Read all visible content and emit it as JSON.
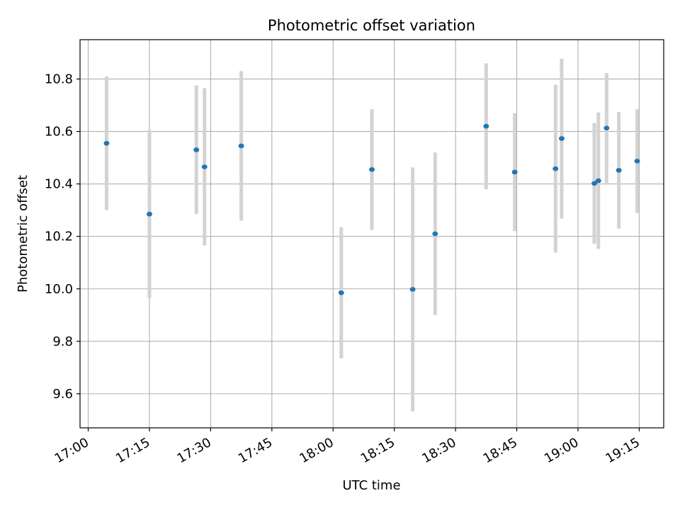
{
  "chart_data": {
    "type": "scatter",
    "title": "Photometric offset variation",
    "xlabel": "UTC time",
    "ylabel": "Photometric offset",
    "x_tick_labels": [
      "17:00",
      "17:15",
      "17:30",
      "17:45",
      "18:00",
      "18:15",
      "18:30",
      "18:45",
      "19:00",
      "19:15"
    ],
    "y_tick_labels": [
      "9.6",
      "9.8",
      "10.0",
      "10.2",
      "10.4",
      "10.6",
      "10.8"
    ],
    "xlim": [
      "16:58",
      "19:21"
    ],
    "ylim": [
      9.47,
      10.95
    ],
    "grid": true,
    "colors": {
      "point": "#1f77b4",
      "errorbar": "#d3d3d3",
      "grid": "#b0b0b0"
    },
    "points": [
      {
        "x": "17:04.5",
        "y": 10.555,
        "err": 0.255
      },
      {
        "x": "17:15.0",
        "y": 10.285,
        "err": 0.32
      },
      {
        "x": "17:26.5",
        "y": 10.53,
        "err": 0.245
      },
      {
        "x": "17:28.5",
        "y": 10.465,
        "err": 0.3
      },
      {
        "x": "17:37.5",
        "y": 10.545,
        "err": 0.285
      },
      {
        "x": "18:02.0",
        "y": 9.985,
        "err": 0.25
      },
      {
        "x": "18:09.5",
        "y": 10.455,
        "err": 0.23
      },
      {
        "x": "18:19.5",
        "y": 9.998,
        "err": 0.465
      },
      {
        "x": "18:25.0",
        "y": 10.21,
        "err": 0.31
      },
      {
        "x": "18:37.5",
        "y": 10.62,
        "err": 0.24
      },
      {
        "x": "18:44.5",
        "y": 10.445,
        "err": 0.225
      },
      {
        "x": "18:54.5",
        "y": 10.458,
        "err": 0.32
      },
      {
        "x": "18:56.0",
        "y": 10.573,
        "err": 0.305
      },
      {
        "x": "19:04.0",
        "y": 10.402,
        "err": 0.23
      },
      {
        "x": "19:05.0",
        "y": 10.412,
        "err": 0.26
      },
      {
        "x": "19:07.0",
        "y": 10.613,
        "err": 0.21
      },
      {
        "x": "19:10.0",
        "y": 10.452,
        "err": 0.222
      },
      {
        "x": "19:14.5",
        "y": 10.487,
        "err": 0.198
      }
    ]
  }
}
